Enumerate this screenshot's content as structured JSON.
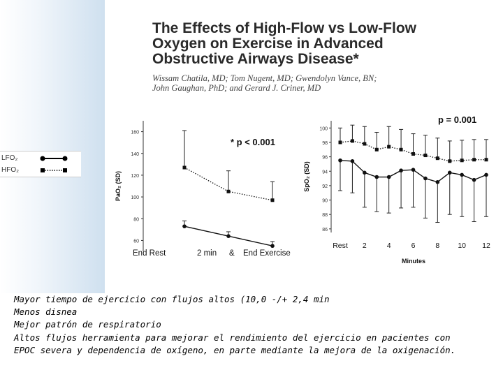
{
  "title_lines": [
    "The Effects of High-Flow vs Low-Flow",
    "Oxygen on Exercise in Advanced",
    "Obstructive Airways Disease*"
  ],
  "author_lines": [
    "Wissam Chatila, MD; Tom Nugent, MD; Gwendolyn Vance, BN;",
    "John Gaughan, PhD; and Gerard J. Criner, MD"
  ],
  "legend": {
    "lfo_label": "LFO₂",
    "hfo_label": "HFO₂"
  },
  "chart_data": [
    {
      "type": "line",
      "ylabel": "PaO₂ (SD)",
      "annotation": "* p < 0.001",
      "ylim": [
        50,
        170
      ],
      "yticks": [
        60,
        80,
        100,
        120,
        140,
        160
      ],
      "categories": [
        "End Rest",
        "2 min",
        "End Exercise"
      ],
      "xlabel_parts": [
        "End Rest",
        "2 min",
        "&",
        "End Exercise"
      ],
      "series": [
        {
          "name": "HFO₂",
          "style": "dotted",
          "values": [
            127,
            105,
            97
          ],
          "sd": [
            34,
            19,
            17
          ]
        },
        {
          "name": "LFO₂",
          "style": "solid",
          "values": [
            73,
            64,
            55
          ],
          "sd": [
            5,
            4,
            4
          ]
        }
      ]
    },
    {
      "type": "line",
      "ylabel": "SpO₂ (SD)",
      "annotation": "p = 0.001",
      "xlabel": "Minutes",
      "ylim": [
        85.5,
        101
      ],
      "yticks": [
        86,
        88,
        90,
        92,
        94,
        96,
        98,
        100
      ],
      "xticks": [
        "Rest",
        "2",
        "4",
        "6",
        "8",
        "10",
        "12"
      ],
      "series": [
        {
          "name": "HFO₂",
          "style": "dotted",
          "values": [
            98.0,
            98.2,
            97.8,
            97.0,
            97.4,
            97.0,
            96.4,
            96.2,
            95.8,
            95.4,
            95.5,
            95.6,
            95.6
          ],
          "sd": [
            2.0,
            2.2,
            2.4,
            2.4,
            2.8,
            2.8,
            2.8,
            2.8,
            2.8,
            2.8,
            2.8,
            2.8,
            2.8
          ]
        },
        {
          "name": "LFO₂",
          "style": "solid",
          "values": [
            95.5,
            95.4,
            93.8,
            93.2,
            93.2,
            94.1,
            94.2,
            93.0,
            92.5,
            93.8,
            93.5,
            92.8,
            93.5
          ],
          "sd": [
            4.2,
            4.4,
            4.8,
            4.8,
            5.0,
            5.2,
            5.2,
            5.5,
            5.6,
            5.8,
            5.8,
            5.8,
            5.8
          ]
        }
      ]
    }
  ],
  "caption_lines": [
    "Mayor tiempo de ejercicio con flujos altos (10,0 -/+ 2,4 min",
    "Menos disnea",
    "Mejor patrón de respiratorio",
    "Altos flujos herramienta para  mejorar el rendimiento del ejercicio en pacientes con",
    "EPOC severa y dependencia de oxígeno, en parte mediante la mejora de la oxigenación."
  ]
}
